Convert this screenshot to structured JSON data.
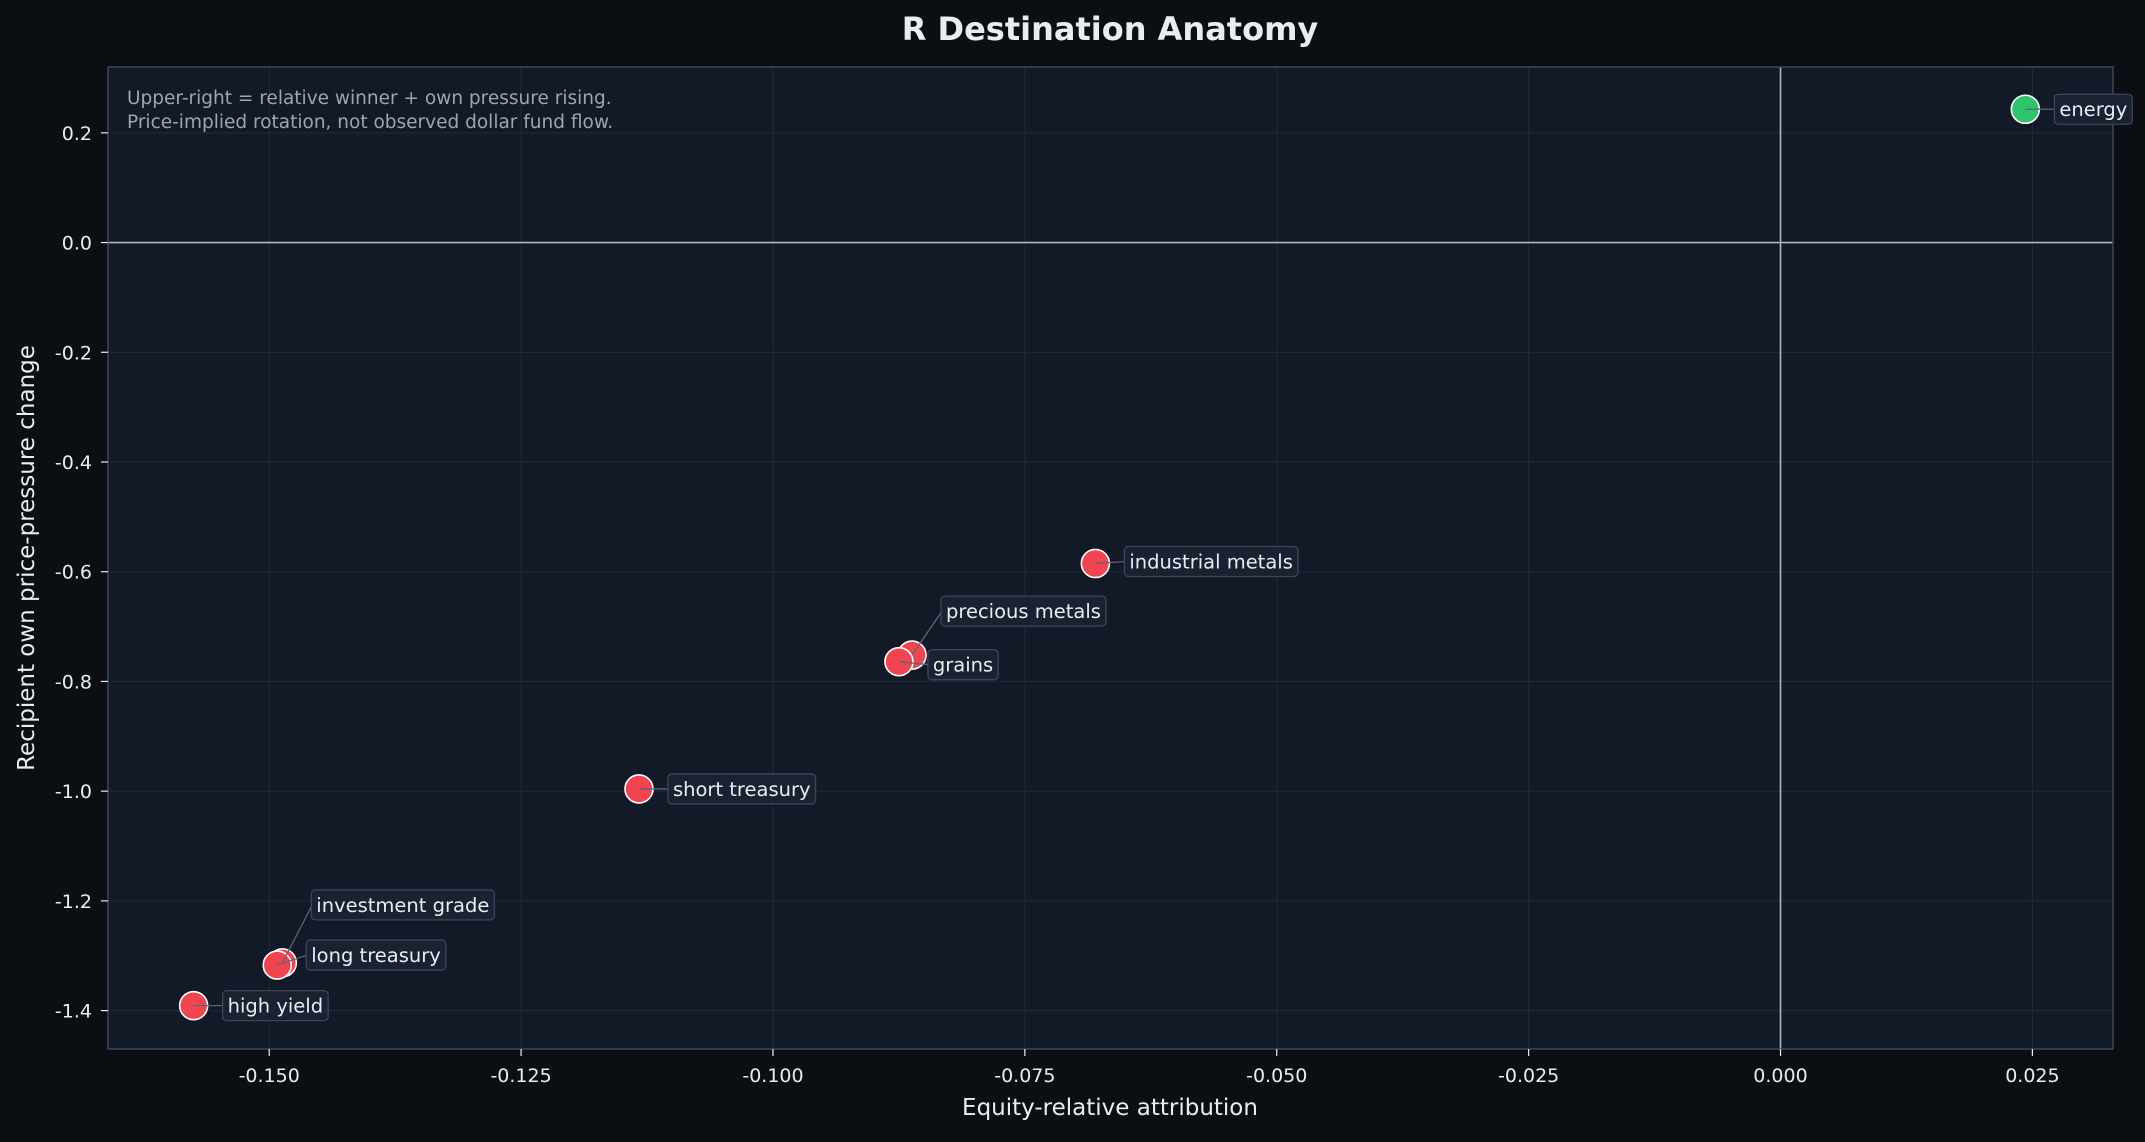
{
  "colors": {
    "figure_bg": "#0b0f13",
    "plot_bg": "#121a28",
    "grid": "#1f2a3a",
    "axis_spine": "#3a4658",
    "zero_line": "#aab6c4",
    "text": "#e8edf2",
    "annotation_text": "#9aa6b4",
    "label_box_fill": "#1a2232",
    "label_box_stroke": "#3a4658",
    "loser": "#f0444e",
    "winner": "#2ec46b",
    "marker_edge": "#ffffff"
  },
  "chart_data": {
    "type": "scatter",
    "title": "R Destination Anatomy",
    "xlabel": "Equity-relative attribution",
    "ylabel": "Recipient own price-pressure change",
    "xlim": [
      -0.166,
      0.033
    ],
    "ylim": [
      -1.47,
      0.32
    ],
    "xticks": [
      -0.15,
      -0.125,
      -0.1,
      -0.075,
      -0.05,
      -0.025,
      0.0,
      0.025
    ],
    "xtick_labels": [
      "-0.150",
      "-0.125",
      "-0.100",
      "-0.075",
      "-0.050",
      "-0.025",
      "0.000",
      "0.025"
    ],
    "yticks": [
      0.2,
      0.0,
      -0.2,
      -0.4,
      -0.6,
      -0.8,
      -1.0,
      -1.2,
      -1.4
    ],
    "ytick_labels": [
      "0.2",
      "0.0",
      "-0.2",
      "-0.4",
      "-0.6",
      "-0.8",
      "-1.0",
      "-1.2",
      "-1.4"
    ],
    "grid": true,
    "reference_lines": {
      "x": 0.0,
      "y": 0.0
    },
    "annotation": [
      "Upper-right = relative winner + own pressure rising.",
      "Price-implied rotation, not observed dollar fund flow."
    ],
    "points": [
      {
        "label": "energy",
        "x": 0.0243,
        "y": 0.243,
        "status": "winner"
      },
      {
        "label": "industrial metals",
        "x": -0.068,
        "y": -0.585,
        "status": "loser"
      },
      {
        "label": "precious metals",
        "x": -0.0862,
        "y": -0.752,
        "status": "loser"
      },
      {
        "label": "grains",
        "x": -0.0875,
        "y": -0.764,
        "status": "loser"
      },
      {
        "label": "short treasury",
        "x": -0.1133,
        "y": -0.996,
        "status": "loser"
      },
      {
        "label": "investment grade",
        "x": -0.1487,
        "y": -1.313,
        "status": "loser"
      },
      {
        "label": "long treasury",
        "x": -0.1492,
        "y": -1.317,
        "status": "loser"
      },
      {
        "label": "high yield",
        "x": -0.1575,
        "y": -1.391,
        "status": "loser"
      }
    ]
  }
}
